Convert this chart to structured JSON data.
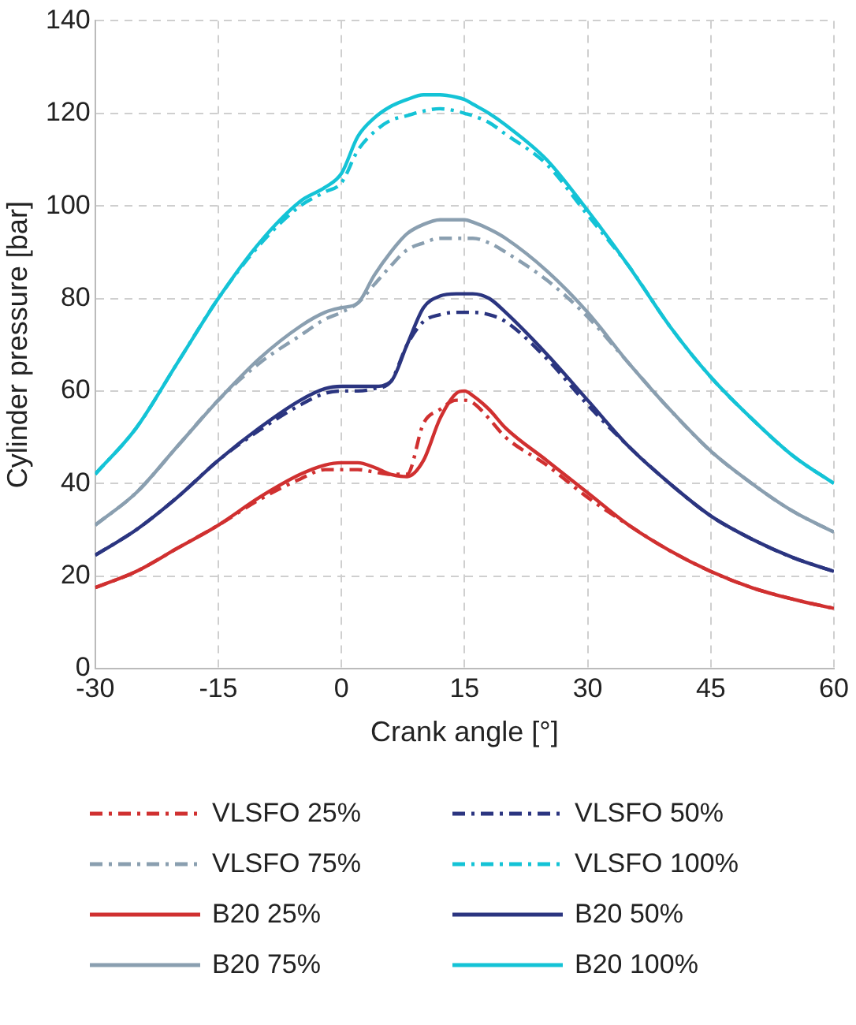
{
  "chart_data": {
    "type": "line",
    "xlabel": "Crank angle [°]",
    "ylabel": "Cylinder pressure [bar]",
    "x": [
      -30,
      -25,
      -20,
      -15,
      -10,
      -5,
      -2,
      0,
      2,
      4,
      6,
      8,
      10,
      12,
      14,
      15,
      16,
      18,
      20,
      25,
      30,
      35,
      40,
      45,
      50,
      55,
      60
    ],
    "xlim": [
      -30,
      60
    ],
    "xticks": [
      -30,
      -15,
      0,
      15,
      30,
      45,
      60
    ],
    "ylim": [
      0,
      140
    ],
    "yticks": [
      0,
      20,
      40,
      60,
      80,
      100,
      120,
      140
    ],
    "grid": true,
    "legend": "bottom",
    "marker": "none",
    "series": [
      {
        "name": "VLSFO 25%",
        "color": "#d03030",
        "line_style": "dashed",
        "values": [
          17.5,
          21,
          26,
          31,
          36.5,
          41,
          43,
          43,
          43,
          42.5,
          42,
          42,
          53,
          56,
          58,
          58,
          57.5,
          54,
          50,
          44,
          37,
          31,
          25.5,
          21,
          17.5,
          15,
          13
        ]
      },
      {
        "name": "VLSFO 50%",
        "color": "#2b3580",
        "line_style": "dashed",
        "values": [
          24.5,
          30,
          37,
          45,
          51.5,
          57,
          59.5,
          60,
          60,
          60.5,
          62,
          70,
          75,
          76.5,
          77,
          77,
          77,
          76.5,
          75,
          67,
          57,
          48,
          40,
          33,
          28,
          24,
          21
        ]
      },
      {
        "name": "VLSFO 75%",
        "color": "#8a9fb0",
        "line_style": "dashed",
        "values": [
          31,
          38,
          48,
          58,
          66,
          72,
          75.5,
          77,
          79,
          83,
          87,
          90.5,
          92,
          93,
          93,
          93,
          93,
          92,
          90,
          84,
          76,
          66,
          56,
          47,
          40,
          34,
          29.5
        ]
      },
      {
        "name": "VLSFO 100%",
        "color": "#14c3d6",
        "line_style": "dashed",
        "values": [
          42,
          52,
          66,
          80,
          91.5,
          100,
          103,
          105,
          112,
          116,
          118.5,
          119.5,
          120.5,
          121,
          120.5,
          120,
          119.5,
          118,
          115.5,
          109,
          98,
          87,
          74,
          63,
          54,
          46,
          40
        ]
      },
      {
        "name": "B20 25%",
        "color": "#d03030",
        "line_style": "solid",
        "values": [
          17.5,
          21,
          26,
          31,
          37,
          42,
          44,
          44.5,
          44.5,
          43.5,
          42,
          41.5,
          45,
          54,
          59.5,
          60,
          59,
          56,
          52,
          45,
          38,
          31,
          25.5,
          21,
          17.5,
          15,
          13
        ]
      },
      {
        "name": "B20 50%",
        "color": "#2b3580",
        "line_style": "solid",
        "values": [
          24.5,
          30,
          37,
          45,
          52,
          58,
          60.5,
          61,
          61,
          61,
          62,
          70,
          78,
          80.5,
          81,
          81,
          81,
          80,
          77,
          68,
          58,
          48,
          40,
          33,
          28,
          24,
          21
        ]
      },
      {
        "name": "B20 75%",
        "color": "#8a9fb0",
        "line_style": "solid",
        "values": [
          31,
          38,
          48,
          58,
          67,
          74,
          77,
          78,
          79,
          85,
          90,
          94,
          96,
          97,
          97,
          97,
          96.5,
          95,
          93,
          86,
          77,
          66,
          56,
          47,
          40,
          34,
          29.5
        ]
      },
      {
        "name": "B20 100%",
        "color": "#14c3d6",
        "line_style": "solid",
        "values": [
          42,
          52,
          66,
          80,
          92,
          101,
          104,
          107,
          115,
          119,
          121.5,
          123,
          124,
          124,
          123.5,
          123,
          122,
          120,
          117.5,
          110,
          99,
          87,
          74,
          63,
          54,
          46,
          40
        ]
      }
    ]
  }
}
